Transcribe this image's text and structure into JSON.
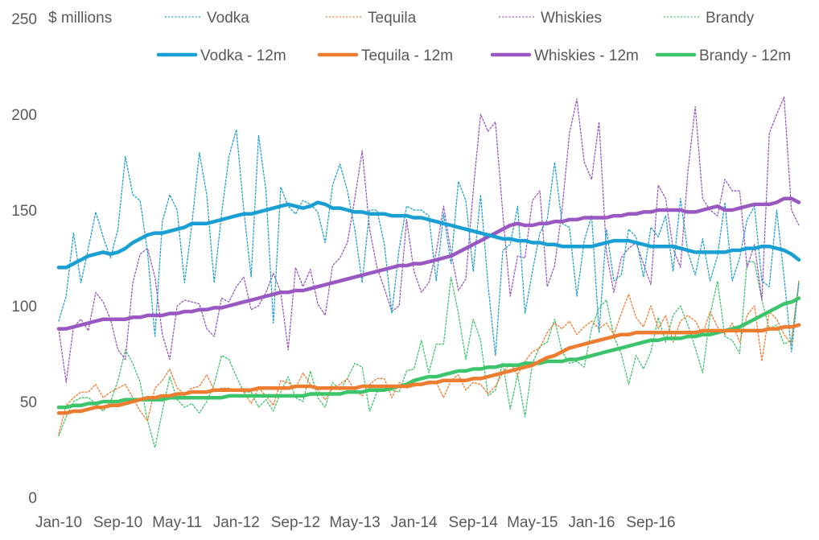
{
  "chart_data": {
    "type": "line",
    "title": "",
    "xlabel": "",
    "ylabel": "$ millions",
    "ylim": [
      0,
      250
    ],
    "y_ticks": [
      0,
      50,
      100,
      150,
      200,
      250
    ],
    "x_ticks": [
      "Jan-10",
      "Sep-10",
      "May-11",
      "Jan-12",
      "Sep-12",
      "May-13",
      "Jan-14",
      "Sep-14",
      "May-15",
      "Jan-16",
      "Sep-16"
    ],
    "grid": false,
    "legend_position": "top",
    "x_start": "Jan-10",
    "x_end": "Dec-16",
    "series": [
      {
        "name": "Vodka",
        "style": "dotted",
        "color": "#1fa0cf",
        "values": [
          92,
          105,
          138,
          112,
          130,
          149,
          136,
          125,
          140,
          178,
          158,
          155,
          128,
          84,
          144,
          158,
          150,
          112,
          143,
          180,
          158,
          112,
          148,
          178,
          192,
          150,
          115,
          189,
          160,
          91,
          162,
          152,
          148,
          155,
          153,
          149,
          133,
          163,
          174,
          160,
          140,
          112,
          150,
          150,
          132,
          96,
          130,
          152,
          150,
          150,
          147,
          113,
          148,
          122,
          165,
          155,
          118,
          158,
          111,
          74,
          129,
          132,
          152,
          96,
          118,
          138,
          145,
          175,
          143,
          141,
          105,
          134,
          147,
          86,
          140,
          113,
          116,
          140,
          136,
          115,
          141,
          136,
          147,
          118,
          156,
          128,
          116,
          135,
          113,
          126,
          154,
          113,
          125,
          145,
          152,
          113,
          110,
          150,
          115,
          76,
          112
        ]
      },
      {
        "name": "Tequila",
        "style": "dotted",
        "color": "#ee7d31",
        "values": [
          33,
          48,
          52,
          55,
          55,
          59,
          52,
          55,
          57,
          59,
          52,
          45,
          40,
          57,
          61,
          67,
          57,
          54,
          57,
          58,
          64,
          56,
          57,
          57,
          56,
          55,
          49,
          57,
          53,
          48,
          61,
          60,
          57,
          65,
          59,
          56,
          51,
          57,
          59,
          62,
          56,
          53,
          59,
          62,
          62,
          52,
          60,
          57,
          58,
          59,
          59,
          60,
          52,
          61,
          64,
          56,
          60,
          59,
          54,
          58,
          65,
          70,
          64,
          71,
          76,
          78,
          86,
          91,
          88,
          92,
          85,
          89,
          92,
          88,
          91,
          85,
          96,
          106,
          94,
          89,
          100,
          88,
          95,
          81,
          92,
          95,
          92,
          85,
          97,
          89,
          85,
          91,
          81,
          95,
          100,
          71,
          97,
          93,
          85,
          80,
          113
        ]
      },
      {
        "name": "Whiskies",
        "style": "dotted",
        "color": "#9a57c2",
        "values": [
          88,
          60,
          89,
          93,
          87,
          107,
          102,
          93,
          77,
          72,
          112,
          127,
          130,
          115,
          85,
          72,
          100,
          103,
          102,
          101,
          88,
          84,
          104,
          102,
          110,
          115,
          98,
          100,
          107,
          117,
          107,
          77,
          120,
          110,
          119,
          101,
          95,
          121,
          125,
          133,
          156,
          181,
          140,
          120,
          109,
          97,
          100,
          145,
          118,
          107,
          112,
          128,
          152,
          128,
          108,
          114,
          160,
          200,
          191,
          196,
          148,
          105,
          126,
          125,
          155,
          160,
          110,
          121,
          150,
          190,
          208,
          175,
          166,
          196,
          128,
          107,
          125,
          130,
          133,
          122,
          111,
          163,
          156,
          130,
          120,
          170,
          204,
          156,
          150,
          147,
          166,
          160,
          160,
          120,
          132,
          103,
          190,
          200,
          209,
          150,
          142
        ]
      },
      {
        "name": "Brandy",
        "style": "dotted",
        "color": "#3dc46a",
        "values": [
          32,
          42,
          50,
          52,
          52,
          49,
          45,
          50,
          61,
          77,
          70,
          60,
          40,
          26,
          45,
          63,
          51,
          47,
          49,
          44,
          50,
          59,
          74,
          72,
          63,
          55,
          55,
          47,
          51,
          45,
          55,
          63,
          52,
          50,
          66,
          52,
          47,
          60,
          56,
          62,
          70,
          68,
          45,
          55,
          56,
          56,
          55,
          66,
          67,
          82,
          65,
          80,
          80,
          115,
          96,
          72,
          93,
          82,
          53,
          56,
          70,
          46,
          64,
          42,
          70,
          79,
          81,
          93,
          76,
          70,
          71,
          68,
          88,
          99,
          103,
          84,
          75,
          59,
          74,
          67,
          76,
          94,
          81,
          95,
          100,
          90,
          78,
          65,
          95,
          113,
          84,
          82,
          75,
          123,
          123,
          103,
          88,
          90,
          80,
          82,
          113
        ]
      },
      {
        "name": "Vodka - 12m",
        "style": "solid",
        "color": "#1a9fd4",
        "values": [
          120,
          120,
          122,
          124,
          126,
          127,
          128,
          127,
          128,
          130,
          133,
          135,
          137,
          138,
          138,
          139,
          140,
          141,
          143,
          143,
          143,
          144,
          145,
          146,
          147,
          148,
          148,
          149,
          150,
          151,
          152,
          153,
          152,
          151,
          152,
          154,
          153,
          151,
          151,
          150,
          149,
          149,
          148,
          148,
          148,
          147,
          147,
          147,
          146,
          146,
          145,
          144,
          143,
          142,
          141,
          140,
          139,
          138,
          137,
          136,
          135,
          135,
          134,
          134,
          133,
          133,
          132,
          132,
          131,
          131,
          131,
          131,
          131,
          132,
          133,
          134,
          134,
          134,
          133,
          132,
          131,
          131,
          131,
          131,
          130,
          129,
          128,
          128,
          128,
          128,
          128,
          129,
          129,
          130,
          130,
          131,
          131,
          130,
          129,
          127,
          124
        ]
      },
      {
        "name": "Tequila - 12m",
        "style": "solid",
        "color": "#ec7c30",
        "values": [
          44,
          44,
          45,
          45,
          46,
          47,
          47,
          48,
          48,
          49,
          50,
          51,
          52,
          52,
          53,
          53,
          54,
          54,
          55,
          55,
          55,
          56,
          56,
          56,
          56,
          56,
          56,
          57,
          57,
          57,
          57,
          57,
          58,
          58,
          58,
          57,
          57,
          57,
          57,
          57,
          57,
          58,
          58,
          58,
          58,
          58,
          58,
          58,
          59,
          59,
          60,
          60,
          61,
          61,
          61,
          61,
          62,
          62,
          63,
          64,
          65,
          66,
          67,
          68,
          69,
          71,
          73,
          74,
          76,
          78,
          79,
          80,
          81,
          82,
          83,
          84,
          85,
          85,
          86,
          86,
          86,
          86,
          86,
          86,
          86,
          86,
          86,
          87,
          87,
          87,
          87,
          87,
          87,
          87,
          87,
          87,
          88,
          88,
          89,
          89,
          90
        ]
      },
      {
        "name": "Whiskies - 12m",
        "style": "solid",
        "color": "#9957c1",
        "values": [
          88,
          88,
          89,
          90,
          91,
          92,
          93,
          93,
          93,
          93,
          94,
          94,
          95,
          95,
          95,
          96,
          96,
          97,
          97,
          98,
          98,
          99,
          99,
          100,
          101,
          102,
          103,
          104,
          105,
          106,
          107,
          107,
          108,
          108,
          109,
          110,
          111,
          112,
          113,
          114,
          115,
          116,
          117,
          118,
          119,
          120,
          121,
          121,
          122,
          122,
          123,
          124,
          125,
          126,
          128,
          130,
          132,
          134,
          136,
          138,
          140,
          142,
          143,
          142,
          142,
          143,
          143,
          144,
          144,
          145,
          145,
          146,
          146,
          146,
          146,
          147,
          147,
          148,
          148,
          149,
          149,
          150,
          150,
          150,
          150,
          149,
          149,
          150,
          151,
          152,
          150,
          150,
          151,
          152,
          153,
          153,
          153,
          154,
          156,
          156,
          154
        ]
      },
      {
        "name": "Brandy - 12m",
        "style": "solid",
        "color": "#3cc46b",
        "values": [
          47,
          47,
          48,
          48,
          49,
          49,
          50,
          50,
          50,
          51,
          51,
          51,
          51,
          51,
          51,
          52,
          52,
          52,
          52,
          52,
          52,
          52,
          52,
          53,
          53,
          53,
          53,
          53,
          53,
          53,
          53,
          53,
          53,
          53,
          54,
          54,
          54,
          54,
          54,
          55,
          55,
          55,
          56,
          56,
          56,
          57,
          58,
          59,
          61,
          62,
          63,
          63,
          64,
          65,
          66,
          66,
          67,
          67,
          68,
          68,
          69,
          69,
          69,
          70,
          70,
          70,
          71,
          71,
          71,
          72,
          72,
          73,
          74,
          75,
          76,
          77,
          78,
          79,
          80,
          81,
          82,
          82,
          83,
          83,
          83,
          84,
          84,
          85,
          85,
          86,
          87,
          88,
          89,
          91,
          93,
          95,
          97,
          99,
          101,
          102,
          104
        ]
      }
    ]
  }
}
